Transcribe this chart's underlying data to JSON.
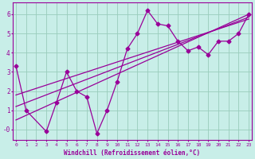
{
  "xlabel": "Windchill (Refroidissement éolien,°C)",
  "bg_color": "#c8eee8",
  "line_color": "#990099",
  "grid_color": "#99ccbb",
  "x_data": [
    0,
    1,
    3,
    4,
    5,
    6,
    7,
    8,
    9,
    10,
    11,
    12,
    13,
    14,
    15,
    16,
    17,
    18,
    19,
    20,
    21,
    22,
    23
  ],
  "y_data": [
    3.3,
    1.0,
    -0.1,
    1.4,
    3.0,
    2.0,
    1.7,
    -0.2,
    1.0,
    2.5,
    4.2,
    5.0,
    6.2,
    5.5,
    5.4,
    4.6,
    4.1,
    4.3,
    3.9,
    4.6,
    4.6,
    5.0,
    6.0
  ],
  "reg_lines": [
    [
      [
        0,
        23
      ],
      [
        0.5,
        6.0
      ]
    ],
    [
      [
        0,
        23
      ],
      [
        1.2,
        5.85
      ]
    ],
    [
      [
        0,
        23
      ],
      [
        1.8,
        5.75
      ]
    ]
  ],
  "xlim": [
    -0.3,
    23.3
  ],
  "ylim": [
    -0.55,
    6.6
  ],
  "yticks": [
    0,
    1,
    2,
    3,
    4,
    5,
    6
  ],
  "ytick_labels": [
    "-0",
    "1",
    "2",
    "3",
    "4",
    "5",
    "6"
  ],
  "xticks": [
    0,
    1,
    2,
    3,
    4,
    5,
    6,
    7,
    8,
    9,
    10,
    11,
    12,
    13,
    14,
    15,
    16,
    17,
    18,
    19,
    20,
    21,
    22,
    23
  ],
  "marker": "D",
  "markersize": 2.5,
  "linewidth": 0.9
}
